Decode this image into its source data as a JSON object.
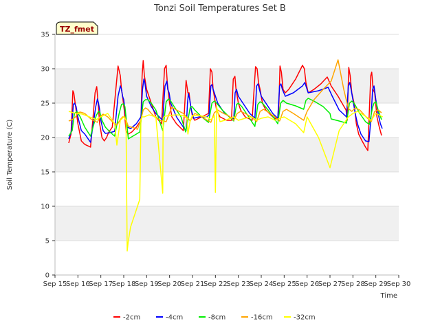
{
  "chart_data": {
    "type": "line",
    "title": "Tonzi Soil Temperatures Set B",
    "xlabel": "Time",
    "ylabel": "Soil Temperature (C)",
    "badge": "TZ_fmet",
    "ylim": [
      0,
      35
    ],
    "yticks": [
      0,
      5,
      10,
      15,
      20,
      25,
      30,
      35
    ],
    "xlim": [
      15,
      30
    ],
    "xticks": [
      15,
      16,
      17,
      18,
      19,
      20,
      21,
      22,
      23,
      24,
      25,
      26,
      27,
      28,
      29,
      30
    ],
    "xtick_labels": [
      "Sep 15",
      "Sep 16",
      "Sep 17",
      "Sep 18",
      "Sep 19",
      "Sep 20",
      "Sep 21",
      "Sep 22",
      "Sep 23",
      "Sep 24",
      "Sep 25",
      "Sep 26",
      "Sep 27",
      "Sep 28",
      "Sep 29",
      "Sep 30"
    ],
    "grid": true,
    "banded_background": true,
    "legend_position": "bottom",
    "series": [
      {
        "name": "-2cm",
        "color": "#ff0000",
        "x": [
          15.6,
          15.7,
          15.78,
          15.82,
          15.9,
          16.0,
          16.15,
          16.3,
          16.55,
          16.75,
          16.82,
          16.88,
          16.95,
          17.05,
          17.15,
          17.25,
          17.35,
          17.5,
          17.75,
          17.85,
          17.9,
          17.95,
          18.02,
          18.1,
          18.2,
          18.35,
          18.55,
          18.75,
          18.8,
          18.85,
          18.9,
          19.0,
          19.2,
          19.4,
          19.65,
          19.78,
          19.85,
          19.9,
          19.95,
          20.0,
          20.1,
          20.3,
          20.6,
          20.72,
          20.8,
          20.85,
          20.9,
          21.0,
          21.1,
          21.4,
          21.7,
          21.78,
          21.85,
          21.9,
          21.95,
          22.05,
          22.2,
          22.5,
          22.7,
          22.78,
          22.85,
          22.9,
          23.0,
          23.1,
          23.3,
          23.6,
          23.75,
          23.82,
          23.88,
          23.95,
          24.05,
          24.2,
          24.5,
          24.75,
          24.82,
          24.88,
          24.95,
          25.05,
          25.2,
          25.5,
          25.8,
          25.88,
          25.95,
          26.05,
          26.3,
          26.6,
          26.88,
          27.05,
          27.35,
          27.7,
          27.75,
          27.82,
          27.88,
          27.95,
          28.05,
          28.15,
          28.25,
          28.4,
          28.55,
          28.65,
          28.72,
          28.78,
          28.82,
          28.88,
          28.95,
          29.05,
          29.15,
          29.25
        ],
        "y": [
          19.2,
          20.5,
          26.8,
          26.5,
          24.5,
          22.0,
          19.5,
          19.0,
          18.6,
          26.5,
          27.4,
          25.0,
          22.0,
          20.0,
          19.5,
          20.0,
          20.8,
          21.5,
          30.4,
          29.0,
          27.0,
          26.0,
          24.0,
          21.0,
          20.5,
          20.8,
          21.5,
          22.5,
          29.0,
          31.2,
          29.0,
          27.0,
          25.0,
          23.0,
          22.0,
          30.0,
          30.5,
          28.0,
          26.5,
          25.0,
          23.0,
          22.0,
          21.0,
          28.3,
          26.5,
          26.5,
          25.0,
          23.0,
          22.5,
          23.0,
          23.5,
          30.0,
          29.5,
          27.0,
          26.0,
          24.0,
          23.0,
          22.5,
          22.5,
          28.5,
          28.9,
          27.0,
          25.0,
          24.0,
          23.0,
          22.5,
          30.3,
          30.0,
          28.0,
          27.0,
          25.0,
          24.0,
          23.0,
          22.5,
          30.4,
          29.5,
          27.0,
          26.5,
          27.0,
          28.5,
          30.5,
          30.0,
          28.0,
          26.5,
          27.0,
          27.8,
          28.8,
          27.5,
          26.0,
          24.0,
          22.5,
          30.2,
          29.0,
          26.5,
          25.0,
          22.0,
          20.5,
          19.5,
          18.6,
          18.1,
          24.0,
          29.0,
          29.5,
          27.0,
          26.5,
          23.0,
          21.5,
          20.3
        ]
      },
      {
        "name": "-4cm",
        "color": "#0000ff",
        "x": [
          15.6,
          15.72,
          15.8,
          15.85,
          15.92,
          16.0,
          16.15,
          16.3,
          16.55,
          16.78,
          16.85,
          16.9,
          16.95,
          17.0,
          17.1,
          17.2,
          17.4,
          17.6,
          17.75,
          17.85,
          17.9,
          17.95,
          18.0,
          18.05,
          18.15,
          18.3,
          18.55,
          18.75,
          18.82,
          18.88,
          18.92,
          19.0,
          19.2,
          19.4,
          19.7,
          19.8,
          19.88,
          19.92,
          19.98,
          20.05,
          20.3,
          20.6,
          20.72,
          20.78,
          20.82,
          20.88,
          20.95,
          21.05,
          21.3,
          21.6,
          21.72,
          21.8,
          21.85,
          21.9,
          21.95,
          22.1,
          22.4,
          22.72,
          22.8,
          22.86,
          22.92,
          23.0,
          23.2,
          23.5,
          23.72,
          23.8,
          23.86,
          23.92,
          24.0,
          24.2,
          24.5,
          24.72,
          24.8,
          24.86,
          24.92,
          25.05,
          25.4,
          25.8,
          25.9,
          25.95,
          26.05,
          26.5,
          26.92,
          27.1,
          27.4,
          27.72,
          27.8,
          27.86,
          27.92,
          28.0,
          28.1,
          28.2,
          28.35,
          28.55,
          28.7,
          28.8,
          28.86,
          28.92,
          29.0,
          29.1,
          29.2,
          29.28
        ],
        "y": [
          19.8,
          21.0,
          24.8,
          25.0,
          24.5,
          23.0,
          21.0,
          20.5,
          19.3,
          24.5,
          25.6,
          25.0,
          24.0,
          22.5,
          21.0,
          20.6,
          20.7,
          20.9,
          26.0,
          27.5,
          27.0,
          26.0,
          25.5,
          24.0,
          21.5,
          21.3,
          22.0,
          23.0,
          27.0,
          28.5,
          28.0,
          26.0,
          24.5,
          23.5,
          22.5,
          27.5,
          28.2,
          27.0,
          26.5,
          25.0,
          23.0,
          21.5,
          21.0,
          25.0,
          26.4,
          25.5,
          24.0,
          22.8,
          23.0,
          23.0,
          23.2,
          27.5,
          27.7,
          27.0,
          26.5,
          25.0,
          23.5,
          22.8,
          22.7,
          26.5,
          27.0,
          26.0,
          25.0,
          23.5,
          22.8,
          27.5,
          27.8,
          27.0,
          26.0,
          25.0,
          23.5,
          22.8,
          27.5,
          27.8,
          27.0,
          26.0,
          26.5,
          27.5,
          28.0,
          27.5,
          26.5,
          26.8,
          27.3,
          26.0,
          24.0,
          23.0,
          27.5,
          28.0,
          27.0,
          25.5,
          23.5,
          22.0,
          20.5,
          19.5,
          19.4,
          23.5,
          27.0,
          27.5,
          25.5,
          23.5,
          22.0,
          21.3
        ]
      },
      {
        "name": "-8cm",
        "color": "#00ee00",
        "x": [
          15.6,
          15.75,
          15.85,
          15.95,
          16.1,
          16.3,
          16.55,
          16.8,
          16.9,
          16.95,
          17.05,
          17.2,
          17.4,
          17.6,
          17.8,
          17.9,
          17.98,
          18.05,
          18.2,
          18.4,
          18.7,
          18.85,
          18.95,
          19.05,
          19.2,
          19.4,
          19.7,
          19.85,
          19.95,
          20.05,
          20.2,
          20.5,
          20.7,
          20.8,
          20.9,
          20.98,
          21.1,
          21.4,
          21.7,
          21.85,
          21.95,
          22.05,
          22.3,
          22.6,
          22.8,
          22.92,
          23.0,
          23.15,
          23.45,
          23.72,
          23.85,
          23.95,
          24.05,
          24.3,
          24.6,
          24.72,
          24.85,
          24.95,
          25.1,
          25.5,
          25.85,
          25.95,
          26.05,
          26.3,
          26.7,
          27.0,
          27.05,
          27.4,
          27.72,
          27.85,
          27.95,
          28.05,
          28.3,
          28.55,
          28.72,
          28.85,
          28.92,
          29.0,
          29.1,
          29.25
        ],
        "y": [
          20.2,
          21.0,
          23.5,
          23.8,
          23.0,
          21.5,
          20.2,
          23.2,
          23.8,
          23.7,
          22.5,
          21.5,
          20.8,
          20.2,
          23.5,
          24.8,
          24.9,
          24.5,
          19.8,
          20.2,
          20.8,
          25.2,
          25.5,
          25.5,
          25.0,
          24.0,
          21.0,
          25.2,
          25.6,
          25.3,
          24.5,
          23.0,
          20.8,
          22.5,
          24.4,
          24.5,
          24.0,
          23.0,
          22.2,
          25.0,
          25.3,
          25.0,
          24.0,
          23.0,
          22.4,
          24.8,
          25.0,
          24.5,
          23.0,
          21.6,
          24.8,
          25.2,
          25.0,
          24.0,
          22.6,
          22.0,
          25.0,
          25.4,
          25.0,
          24.6,
          24.1,
          25.4,
          25.7,
          25.3,
          24.5,
          23.5,
          22.7,
          22.4,
          22.1,
          25.0,
          25.3,
          25.0,
          23.5,
          22.3,
          21.9,
          24.3,
          25.0,
          25.2,
          24.0,
          22.6
        ]
      },
      {
        "name": "-16cm",
        "color": "#ffa500",
        "x": [
          15.6,
          15.75,
          15.9,
          16.0,
          16.1,
          16.3,
          16.6,
          16.85,
          16.95,
          17.1,
          17.3,
          17.5,
          17.7,
          17.85,
          17.95,
          18.05,
          18.2,
          18.35,
          18.6,
          18.75,
          18.85,
          18.95,
          19.05,
          19.2,
          19.35,
          19.6,
          19.85,
          20.0,
          20.1,
          20.3,
          20.6,
          20.8,
          20.9,
          21.0,
          21.1,
          21.3,
          21.6,
          21.8,
          21.95,
          22.1,
          22.3,
          22.6,
          22.8,
          22.95,
          23.1,
          23.3,
          23.6,
          23.8,
          23.95,
          24.1,
          24.3,
          24.6,
          24.8,
          24.95,
          25.1,
          25.4,
          25.85,
          26.0,
          26.3,
          26.7,
          27.05,
          27.35,
          27.6,
          27.8,
          27.95,
          28.1,
          28.3,
          28.6,
          28.8,
          28.95,
          29.1,
          29.25
        ],
        "y": [
          22.4,
          22.6,
          23.0,
          23.6,
          23.7,
          23.5,
          22.6,
          22.2,
          23.0,
          23.4,
          23.0,
          22.3,
          21.8,
          22.6,
          23.0,
          23.0,
          21.6,
          21.5,
          21.2,
          22.6,
          24.0,
          24.3,
          24.1,
          23.5,
          23.0,
          22.5,
          22.3,
          23.6,
          24.4,
          24.0,
          23.5,
          22.8,
          22.4,
          23.0,
          23.5,
          23.2,
          22.6,
          22.2,
          23.6,
          24.0,
          23.6,
          23.1,
          22.5,
          23.5,
          23.8,
          23.5,
          22.9,
          22.3,
          23.8,
          24.1,
          23.7,
          23.0,
          22.4,
          23.8,
          24.1,
          23.5,
          22.5,
          23.8,
          25.5,
          27.0,
          28.2,
          31.3,
          27.0,
          24.2,
          23.8,
          24.3,
          24.0,
          22.9,
          22.3,
          23.8,
          24.0,
          23.6
        ]
      },
      {
        "name": "-32cm",
        "color": "#ffff00",
        "x": [
          15.6,
          15.8,
          16.0,
          16.2,
          16.5,
          16.8,
          17.0,
          17.3,
          17.6,
          17.7,
          17.85,
          18.0,
          18.1,
          18.15,
          18.2,
          18.3,
          18.5,
          18.7,
          18.75,
          18.8,
          18.9,
          19.1,
          19.4,
          19.7,
          19.72,
          19.75,
          19.8,
          20.0,
          20.3,
          20.6,
          20.75,
          20.8,
          20.9,
          21.0,
          21.3,
          21.6,
          21.8,
          21.9,
          21.95,
          22.0,
          22.05,
          22.2,
          22.5,
          22.8,
          23.0,
          23.3,
          23.6,
          23.8,
          24.0,
          24.3,
          24.6,
          24.8,
          25.0,
          25.2,
          25.5,
          25.85,
          26.0,
          26.05,
          26.5,
          27.0,
          27.4,
          27.8,
          28.0,
          28.2,
          28.5,
          28.8,
          29.0,
          29.3
        ],
        "y": [
          23.8,
          23.6,
          23.5,
          23.4,
          23.0,
          22.6,
          23.0,
          23.5,
          22.0,
          18.9,
          22.5,
          23.0,
          22.5,
          3.5,
          5.0,
          7.0,
          9.0,
          11.0,
          22.5,
          23.0,
          23.0,
          23.3,
          23.0,
          11.9,
          22.8,
          23.0,
          23.1,
          23.2,
          23.3,
          23.2,
          22.8,
          20.5,
          22.5,
          23.2,
          23.2,
          23.0,
          22.6,
          22.9,
          23.2,
          12.0,
          24.5,
          22.3,
          22.6,
          23.0,
          22.5,
          22.8,
          23.0,
          22.5,
          22.8,
          23.0,
          22.5,
          22.8,
          23.0,
          22.6,
          22.0,
          20.7,
          23.0,
          22.7,
          20.0,
          15.6,
          21.0,
          23.0,
          23.5,
          23.8,
          23.2,
          22.5,
          23.5,
          23.0
        ]
      }
    ]
  }
}
